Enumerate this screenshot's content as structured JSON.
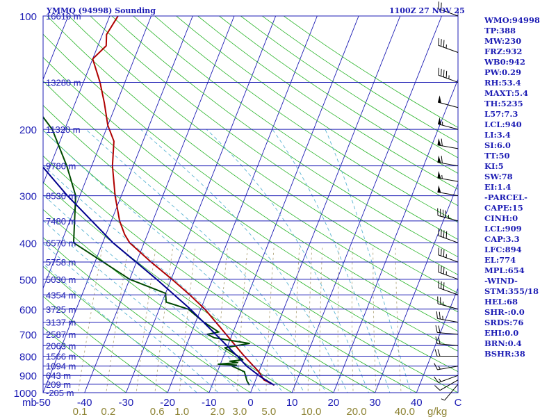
{
  "header": {
    "station_title": "YMMQ (94998) Sounding",
    "time_label": "1100Z 27 NOV 25"
  },
  "indices": [
    "WMO:94998",
    "TP:388",
    "MW:230",
    "FRZ:932",
    "WB0:942",
    "PW:0.29",
    "RH:53.4",
    "MAXT:5.4",
    "TH:5235",
    "L57:7.3",
    "LCL:940",
    "LI:3.4",
    "SI:6.0",
    "TT:50",
    "KI:5",
    "SW:78",
    "EI:1.4",
    "-PARCEL-",
    "CAPE:15",
    "CINH:0",
    "LCL:909",
    "CAP:3.3",
    "LFC:894",
    "EL:774",
    "MPL:654",
    "-WIND-",
    "STM:355/18",
    "HEL:68",
    "SHR-:0.0",
    "SRDS:76",
    "EHI:0.0",
    "BRN:0.4",
    "BSHR:38"
  ],
  "chart_data": {
    "type": "line",
    "subtype": "skew-T log-P sounding",
    "y_axis": {
      "unit": "mb",
      "scale": "log",
      "range": [
        1000,
        100
      ],
      "tick_labels": [
        "100",
        "200",
        "300",
        "400",
        "500",
        "600",
        "700",
        "800",
        "900",
        "1000"
      ]
    },
    "x_axis": {
      "unit_label": "mb",
      "range_c": [
        -50,
        50
      ],
      "tick_labels": [
        "-50",
        "-40",
        "-30",
        "-20",
        "-10",
        "0",
        "10",
        "20",
        "30",
        "40"
      ],
      "right_end_label": "C"
    },
    "mixing_ratio_axis": {
      "unit": "g/kg",
      "tick_labels": [
        "0.1",
        "0.2",
        "0.6",
        "1.0",
        "2.0",
        "3.0",
        "5.0",
        "10.0",
        "20.0",
        "40.0"
      ],
      "label": "g/kg"
    },
    "height_levels": [
      {
        "p": 100,
        "label": "16610 m"
      },
      {
        "p": 150,
        "label": "13280 m"
      },
      {
        "p": 200,
        "label": "11320 m"
      },
      {
        "p": 250,
        "label": "9780 m"
      },
      {
        "p": 300,
        "label": "8530 m"
      },
      {
        "p": 350,
        "label": "7480 m"
      },
      {
        "p": 400,
        "label": "6570 m"
      },
      {
        "p": 450,
        "label": "5758 m"
      },
      {
        "p": 500,
        "label": "5030 m"
      },
      {
        "p": 550,
        "label": "4354 m"
      },
      {
        "p": 600,
        "label": "3725 m"
      },
      {
        "p": 650,
        "label": "3137 m"
      },
      {
        "p": 700,
        "label": "2587 m"
      },
      {
        "p": 750,
        "label": "2063 m"
      },
      {
        "p": 800,
        "label": "1566 m"
      },
      {
        "p": 850,
        "label": "1094 m"
      },
      {
        "p": 900,
        "label": "643 m"
      },
      {
        "p": 950,
        "label": "209 m"
      },
      {
        "p": 1000,
        "label": "-205 m"
      }
    ],
    "series": [
      {
        "id": "temperature",
        "color": "#b00000",
        "points": [
          {
            "p": 955,
            "t": 5.0
          },
          {
            "p": 925,
            "t": 2.0
          },
          {
            "p": 880,
            "t": 0.0
          },
          {
            "p": 800,
            "t": -5.0
          },
          {
            "p": 700,
            "t": -11.5
          },
          {
            "p": 600,
            "t": -19.0
          },
          {
            "p": 550,
            "t": -24.0
          },
          {
            "p": 500,
            "t": -29.8
          },
          {
            "p": 450,
            "t": -36.5
          },
          {
            "p": 400,
            "t": -43.5
          },
          {
            "p": 380,
            "t": -45.5
          },
          {
            "p": 350,
            "t": -48.0
          },
          {
            "p": 300,
            "t": -51.5
          },
          {
            "p": 250,
            "t": -55.0
          },
          {
            "p": 215,
            "t": -57.0
          },
          {
            "p": 195,
            "t": -60.0
          },
          {
            "p": 170,
            "t": -63.0
          },
          {
            "p": 150,
            "t": -66.0
          },
          {
            "p": 130,
            "t": -70.0
          },
          {
            "p": 120,
            "t": -68.0
          },
          {
            "p": 112,
            "t": -69.0
          },
          {
            "p": 100,
            "t": -68.0
          }
        ]
      },
      {
        "id": "dewpoint",
        "color": "#004a00",
        "points": [
          {
            "p": 955,
            "t": -1.0
          },
          {
            "p": 930,
            "t": -2.0
          },
          {
            "p": 880,
            "t": -3.5
          },
          {
            "p": 850,
            "t": -7.0
          },
          {
            "p": 845,
            "t": -6.0
          },
          {
            "p": 840,
            "t": -10.5
          },
          {
            "p": 832,
            "t": -6.0
          },
          {
            "p": 825,
            "t": -8.0
          },
          {
            "p": 818,
            "t": -5.0
          },
          {
            "p": 795,
            "t": -7.0
          },
          {
            "p": 760,
            "t": -10.5
          },
          {
            "p": 740,
            "t": -5.0
          },
          {
            "p": 715,
            "t": -14.0
          },
          {
            "p": 700,
            "t": -16.0
          },
          {
            "p": 690,
            "t": -13.5
          },
          {
            "p": 650,
            "t": -18.0
          },
          {
            "p": 600,
            "t": -23.0
          },
          {
            "p": 575,
            "t": -29.0
          },
          {
            "p": 545,
            "t": -30.0
          },
          {
            "p": 500,
            "t": -40.0
          },
          {
            "p": 400,
            "t": -57.0
          },
          {
            "p": 300,
            "t": -61.0
          },
          {
            "p": 250,
            "t": -66.0
          },
          {
            "p": 200,
            "t": -73.0
          },
          {
            "p": 175,
            "t": -79.0
          },
          {
            "p": 150,
            "t": -87.0
          },
          {
            "p": 130,
            "t": -94.0
          },
          {
            "p": 110,
            "t": -103.0
          },
          {
            "p": 100,
            "t": -106.0
          }
        ]
      },
      {
        "id": "parcel",
        "color": "#00008c",
        "points": [
          {
            "p": 955,
            "t": 5.0
          },
          {
            "p": 909,
            "t": 1.0
          },
          {
            "p": 850,
            "t": -3.5
          },
          {
            "p": 800,
            "t": -6.7
          },
          {
            "p": 700,
            "t": -14.0
          },
          {
            "p": 600,
            "t": -22.5
          },
          {
            "p": 500,
            "t": -33.5
          },
          {
            "p": 400,
            "t": -47.5
          },
          {
            "p": 300,
            "t": -63.0
          },
          {
            "p": 250,
            "t": -72.0
          },
          {
            "p": 200,
            "t": -82.0
          },
          {
            "p": 150,
            "t": -95.0
          },
          {
            "p": 120,
            "t": -104.0
          }
        ]
      }
    ],
    "wind_barbs": [
      {
        "p": 950,
        "dir": 220,
        "spd": 5
      },
      {
        "p": 925,
        "dir": 240,
        "spd": 10
      },
      {
        "p": 900,
        "dir": 250,
        "spd": 15
      },
      {
        "p": 850,
        "dir": 260,
        "spd": 15
      },
      {
        "p": 800,
        "dir": 270,
        "spd": 20
      },
      {
        "p": 750,
        "dir": 275,
        "spd": 20
      },
      {
        "p": 700,
        "dir": 275,
        "spd": 20
      },
      {
        "p": 650,
        "dir": 280,
        "spd": 25
      },
      {
        "p": 600,
        "dir": 285,
        "spd": 25
      },
      {
        "p": 550,
        "dir": 290,
        "spd": 30
      },
      {
        "p": 500,
        "dir": 290,
        "spd": 35
      },
      {
        "p": 450,
        "dir": 290,
        "spd": 35
      },
      {
        "p": 400,
        "dir": 290,
        "spd": 40
      },
      {
        "p": 350,
        "dir": 285,
        "spd": 45
      },
      {
        "p": 300,
        "dir": 280,
        "spd": 50
      },
      {
        "p": 275,
        "dir": 280,
        "spd": 55
      },
      {
        "p": 250,
        "dir": 280,
        "spd": 60
      },
      {
        "p": 225,
        "dir": 280,
        "spd": 60
      },
      {
        "p": 200,
        "dir": 285,
        "spd": 55
      },
      {
        "p": 175,
        "dir": 285,
        "spd": 50
      },
      {
        "p": 150,
        "dir": 290,
        "spd": 45
      },
      {
        "p": 125,
        "dir": 290,
        "spd": 35
      },
      {
        "p": 100,
        "dir": 290,
        "spd": 20
      }
    ],
    "grid": true
  },
  "colors": {
    "axis": "#1c1cb4",
    "isotherm": "#1c1cb4",
    "dry_adiabat": "#28b428",
    "moist_adiabat": "#5ab4d2",
    "mixing_ratio": "#b4aa82",
    "axis_label_tan": "#8c8232"
  }
}
